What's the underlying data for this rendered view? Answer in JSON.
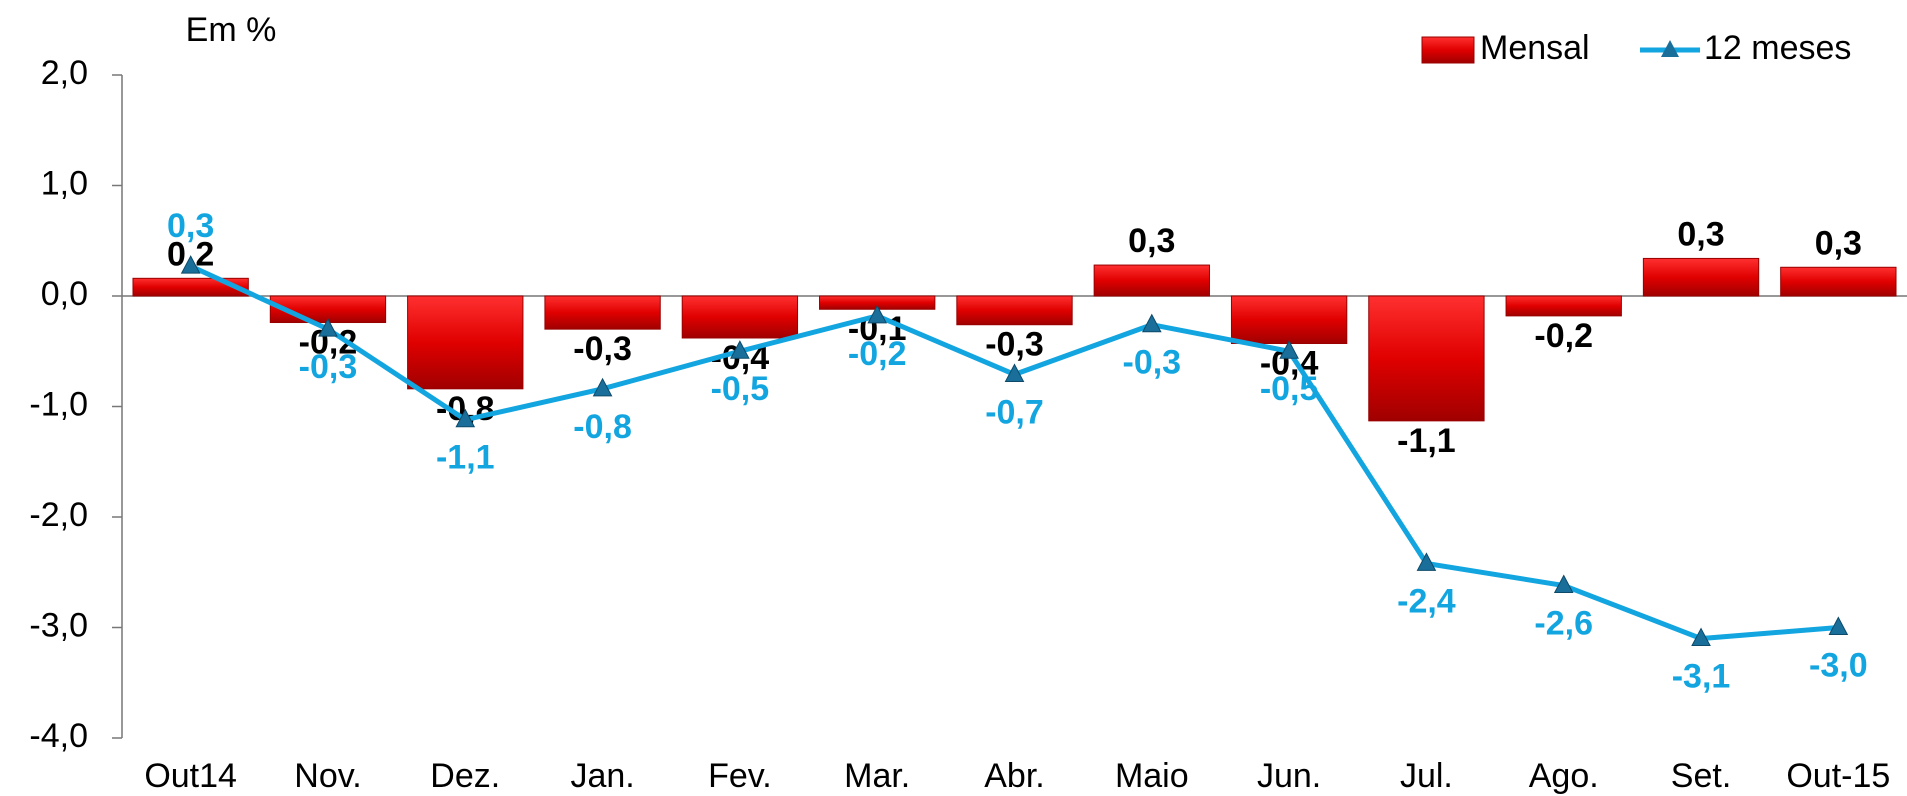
{
  "chart_data": {
    "type": "bar-line",
    "title": "Em %",
    "categories": [
      "Out14",
      "Nov.",
      "Dez.",
      "Jan.",
      "Fev.",
      "Mar.",
      "Abr.",
      "Maio",
      "Jun.",
      "Jul.",
      "Ago.",
      "Set.",
      "Out-15"
    ],
    "series": [
      {
        "name": "Mensal",
        "type": "bar",
        "color": "#e00000",
        "values": [
          0.16,
          -0.24,
          -0.84,
          -0.3,
          -0.38,
          -0.12,
          -0.26,
          0.28,
          -0.43,
          -1.13,
          -0.18,
          0.34,
          0.26
        ],
        "value_labels": [
          "0,2",
          "-0,2",
          "-0,8",
          "-0,3",
          "-0,4",
          "-0,1",
          "-0,3",
          "0,3",
          "-0,4",
          "-1,1",
          "-0,2",
          "0,3",
          "0,3"
        ]
      },
      {
        "name": "12 meses",
        "type": "line",
        "color": "#12a5e0",
        "values": [
          0.27,
          -0.3,
          -1.12,
          -0.84,
          -0.5,
          -0.18,
          -0.71,
          -0.26,
          -0.5,
          -2.42,
          -2.62,
          -3.1,
          -3.0
        ],
        "value_labels": [
          "0,3",
          "-0,3",
          "-1,1",
          "-0,8",
          "-0,5",
          "-0,2",
          "-0,7",
          "-0,3",
          "-0,5",
          "-2,4",
          "-2,6",
          "-3,1",
          "-3,0"
        ]
      }
    ],
    "ylim": [
      -4,
      2
    ],
    "yticks": [
      {
        "value": -4,
        "label": "-4,0"
      },
      {
        "value": -3,
        "label": "-3,0"
      },
      {
        "value": -2,
        "label": "-2,0"
      },
      {
        "value": -1,
        "label": "-1,0"
      },
      {
        "value": 0,
        "label": "0,0"
      },
      {
        "value": 1,
        "label": "1,0"
      },
      {
        "value": 2,
        "label": "2,0"
      }
    ],
    "legend": "top-right"
  }
}
